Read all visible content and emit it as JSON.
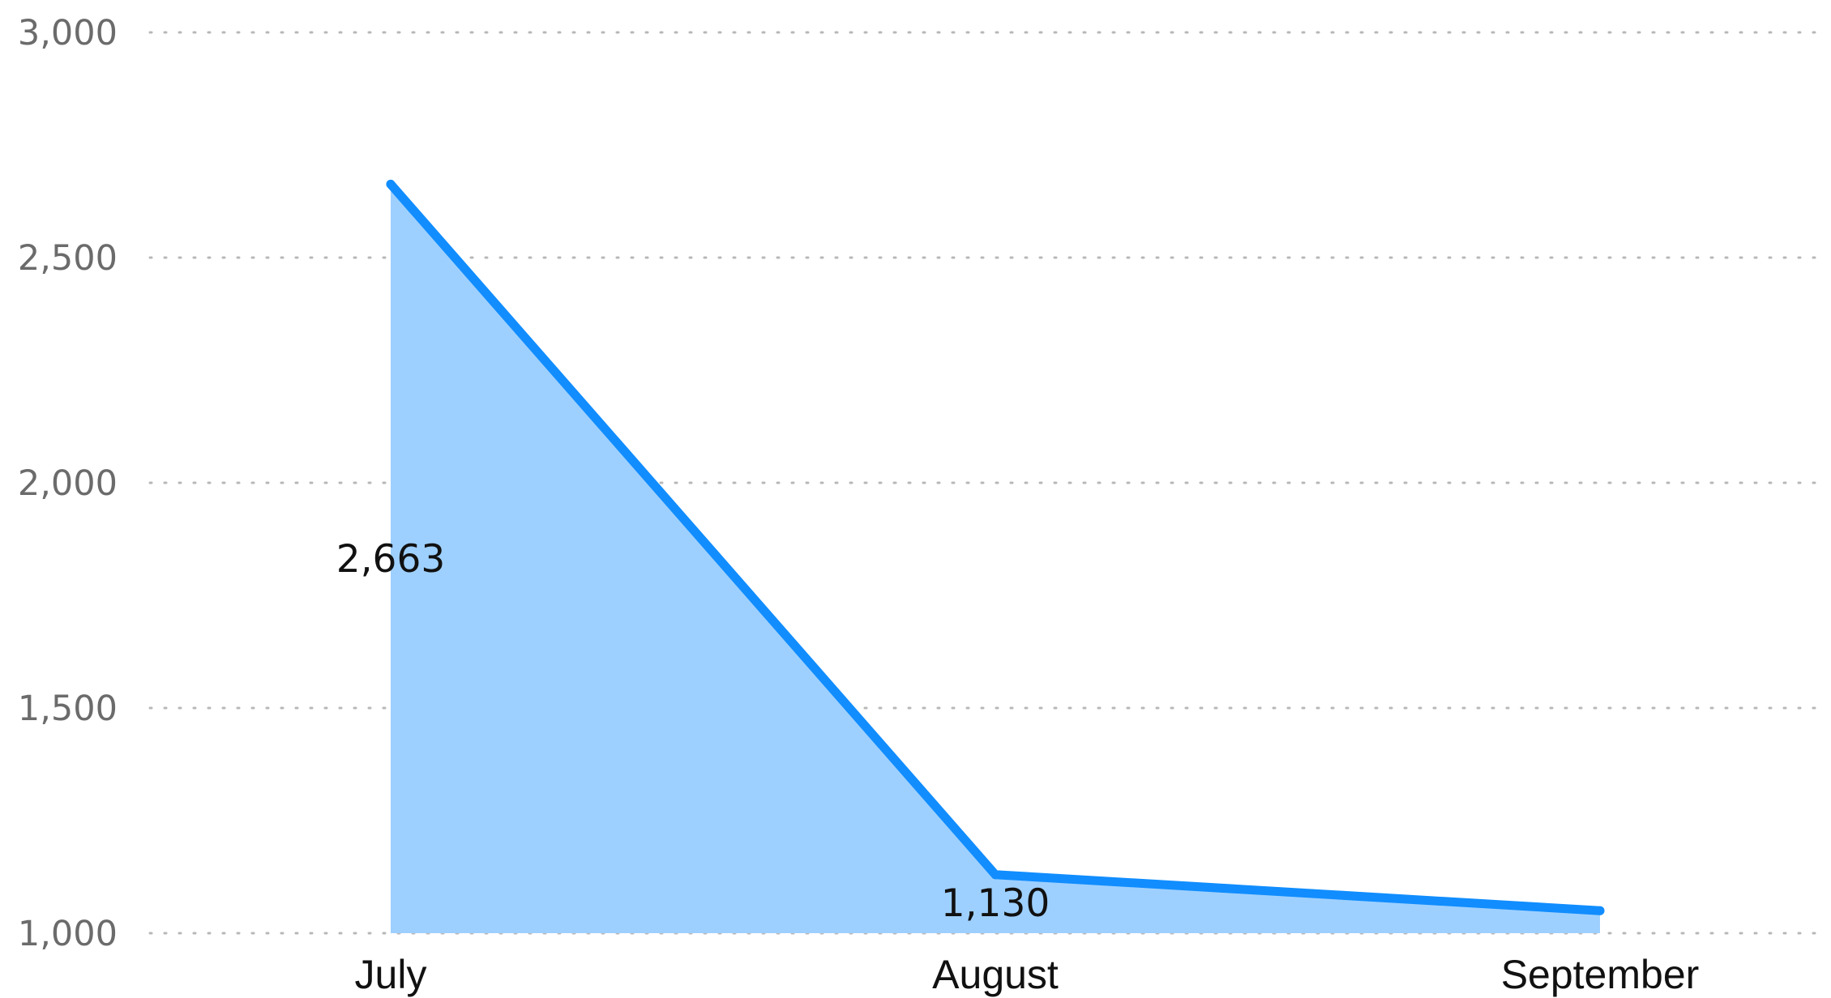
{
  "chart_data": {
    "type": "area",
    "categories": [
      "July",
      "August",
      "September"
    ],
    "series": [
      {
        "values": [
          2663,
          1130,
          1050
        ]
      }
    ],
    "data_labels": [
      {
        "index": 0,
        "text": "2,663"
      },
      {
        "index": 1,
        "text": "1,130"
      }
    ],
    "ylim": [
      1000,
      3000
    ],
    "y_ticks": [
      1000,
      1500,
      2000,
      2500,
      3000
    ],
    "y_tick_labels": [
      "1,000",
      "1,500",
      "2,000",
      "2,500",
      "3,000"
    ],
    "grid": true,
    "legend": "none",
    "colors": {
      "line": "#118dff",
      "fill": "#9ed0ff",
      "grid": "#b8b8b8",
      "y_tick_text": "#6b6b6b",
      "x_tick_text": "#111111"
    }
  }
}
